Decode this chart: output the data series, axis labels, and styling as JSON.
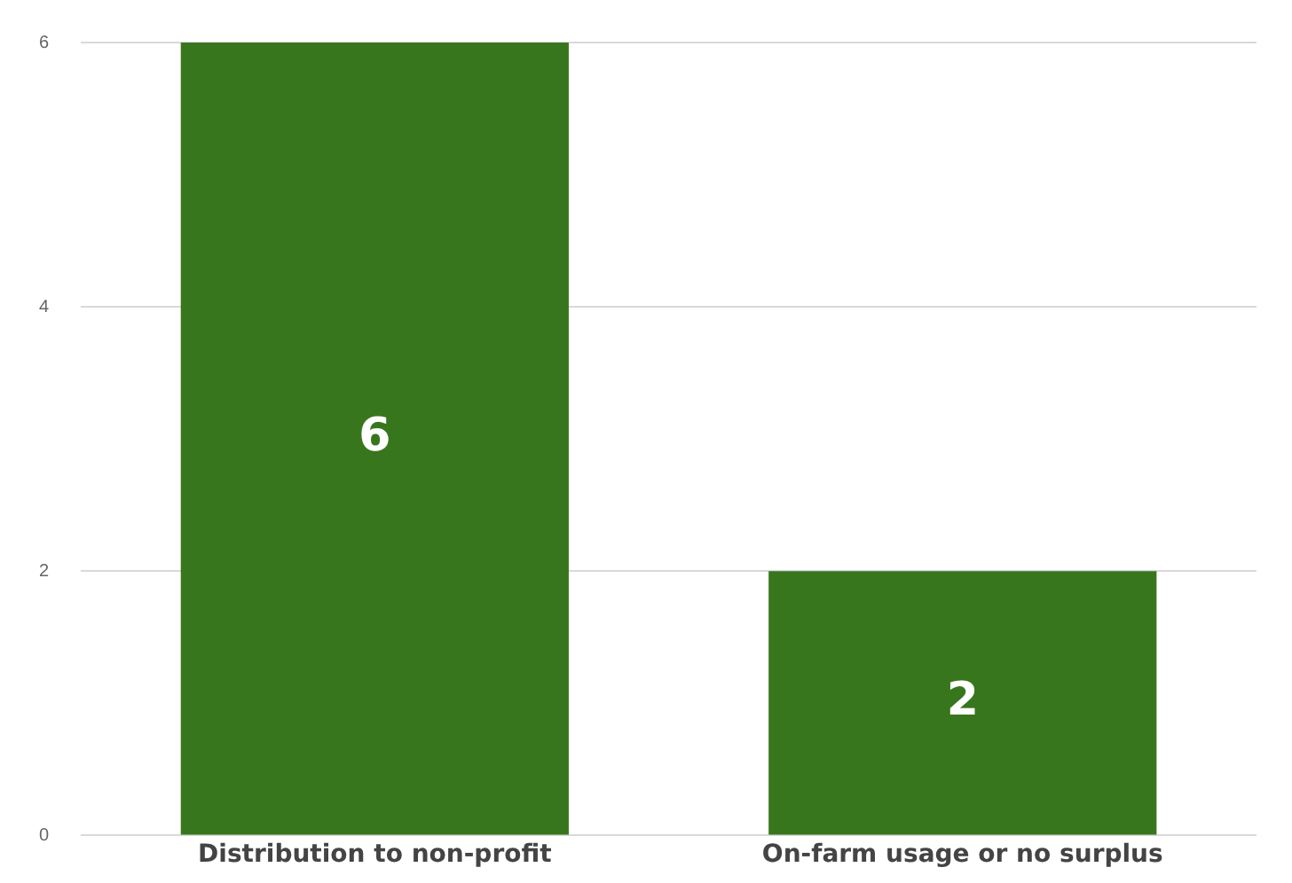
{
  "chart_data": {
    "type": "bar",
    "categories": [
      "Distribution to non-profit",
      "On-farm usage or no surplus"
    ],
    "values": [
      6,
      2
    ],
    "color": "#38761d",
    "ylim": [
      0,
      6
    ],
    "yticks": [
      0,
      2,
      4,
      6
    ],
    "grid": "y",
    "data_labels": true
  }
}
